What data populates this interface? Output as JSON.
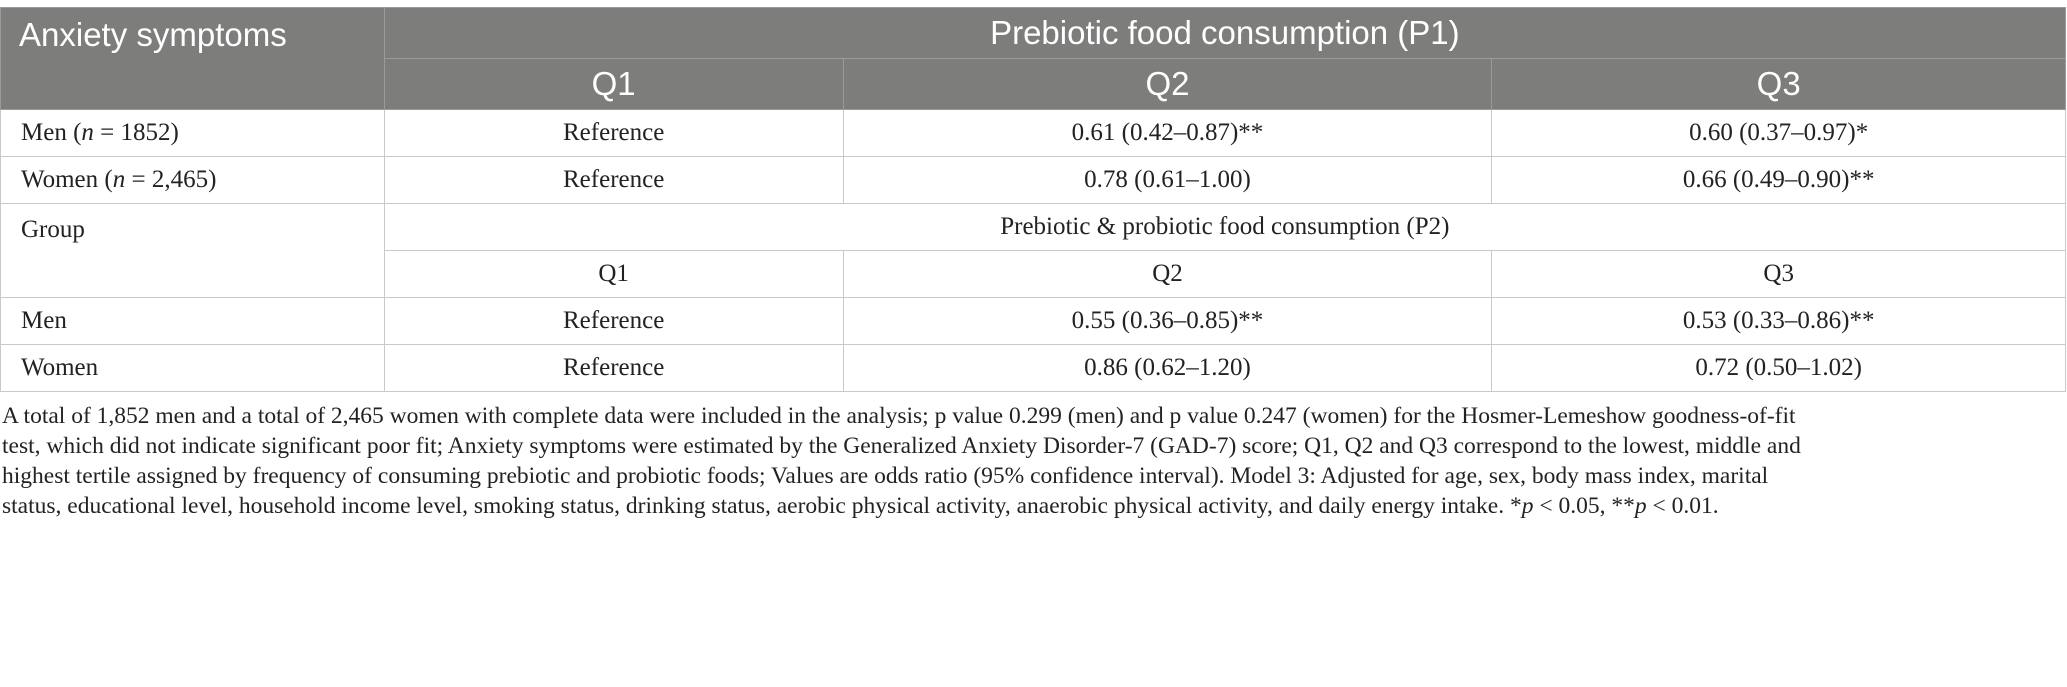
{
  "table": {
    "header": {
      "col0": "Anxiety symptoms",
      "group_title": "Prebiotic food consumption (P1)",
      "q1": "Q1",
      "q2": "Q2",
      "q3": "Q3"
    },
    "p1_rows": [
      {
        "label_prefix": "Men (",
        "n_italic": "n",
        "label_suffix": " = 1852)",
        "q1": "Reference",
        "q2": "0.61 (0.42–0.87)**",
        "q3": "0.60 (0.37–0.97)*"
      },
      {
        "label_prefix": "Women (",
        "n_italic": "n",
        "label_suffix": " = 2,465)",
        "q1": "Reference",
        "q2": "0.78 (0.61–1.00)",
        "q3": "0.66 (0.49–0.90)**"
      }
    ],
    "p2_section": {
      "label": "Group",
      "title": "Prebiotic & probiotic food consumption (P2)",
      "q1": "Q1",
      "q2": "Q2",
      "q3": "Q3"
    },
    "p2_rows": [
      {
        "label": "Men",
        "q1": "Reference",
        "q2": "0.55 (0.36–0.85)**",
        "q3": "0.53 (0.33–0.86)**"
      },
      {
        "label": "Women",
        "q1": "Reference",
        "q2": "0.86 (0.62–1.20)",
        "q3": "0.72 (0.50–1.02)"
      }
    ]
  },
  "footnote": {
    "lines": [
      "A total of 1,852 men and a total of 2,465 women with complete data were included in the analysis; p value 0.299 (men) and p value 0.247 (women) for the Hosmer-Lemeshow goodness-of-fit",
      "test, which did not indicate significant poor fit; Anxiety symptoms were estimated by the Generalized Anxiety Disorder-7 (GAD-7) score; Q1, Q2 and Q3 correspond to the lowest, middle and",
      "highest tertile assigned by frequency of consuming prebiotic and probiotic foods; Values are odds ratio (95% confidence interval). Model 3: Adjusted for age, sex, body mass index, marital"
    ],
    "last_line_text": "status, educational level, household income level, smoking status, drinking status, aerobic physical activity, anaerobic physical activity, and daily energy intake. ",
    "sig1_star": "*",
    "sig1_p": "p",
    "sig1_rest": " < 0.05, ",
    "sig2_star": "**",
    "sig2_p": "p",
    "sig2_rest": " < 0.01."
  }
}
